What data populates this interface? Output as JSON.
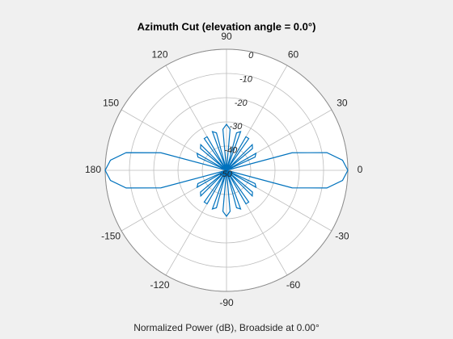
{
  "chart_data": {
    "type": "polar",
    "title": "Azimuth Cut (elevation angle = 0.0°)",
    "xlabel": "Normalized Power (dB), Broadside at 0.00°",
    "rlim": [
      -50,
      0
    ],
    "rticks": [
      0,
      -10,
      -20,
      -30,
      -40,
      -50
    ],
    "thetaticks": [
      0,
      30,
      60,
      90,
      120,
      150,
      180,
      -150,
      -120,
      -90,
      -60,
      -30
    ],
    "grid": true,
    "series": [
      {
        "color": "#0072bd",
        "x": [
          0,
          5,
          10,
          15,
          20,
          25,
          30,
          35,
          40,
          45,
          50,
          55,
          60,
          65,
          70,
          75,
          80,
          85,
          90,
          95,
          100,
          105,
          110,
          115,
          120,
          125,
          130,
          135,
          140,
          145,
          150,
          155,
          160,
          165,
          170,
          175,
          180,
          185,
          190,
          195,
          200,
          205,
          210,
          215,
          220,
          225,
          230,
          235,
          240,
          245,
          250,
          255,
          260,
          265,
          270,
          275,
          280,
          285,
          290,
          295,
          300,
          305,
          310,
          315,
          320,
          325,
          330,
          335,
          340,
          345,
          350,
          355
        ],
        "values": [
          0,
          -2,
          -8,
          -22,
          -50,
          -37,
          -36,
          -50,
          -36,
          -35,
          -50,
          -34,
          -34,
          -50,
          -33,
          -34,
          -50,
          -33,
          -31,
          -33,
          -50,
          -34,
          -33,
          -50,
          -34,
          -34,
          -50,
          -35,
          -36,
          -50,
          -36,
          -37,
          -50,
          -22,
          -8,
          -2,
          0,
          -2,
          -8,
          -22,
          -50,
          -37,
          -36,
          -50,
          -36,
          -35,
          -50,
          -34,
          -34,
          -50,
          -33,
          -34,
          -50,
          -33,
          -31,
          -33,
          -50,
          -34,
          -33,
          -50,
          -34,
          -34,
          -50,
          -35,
          -36,
          -50,
          -36,
          -37,
          -50,
          -22,
          -8,
          -2
        ]
      }
    ]
  }
}
